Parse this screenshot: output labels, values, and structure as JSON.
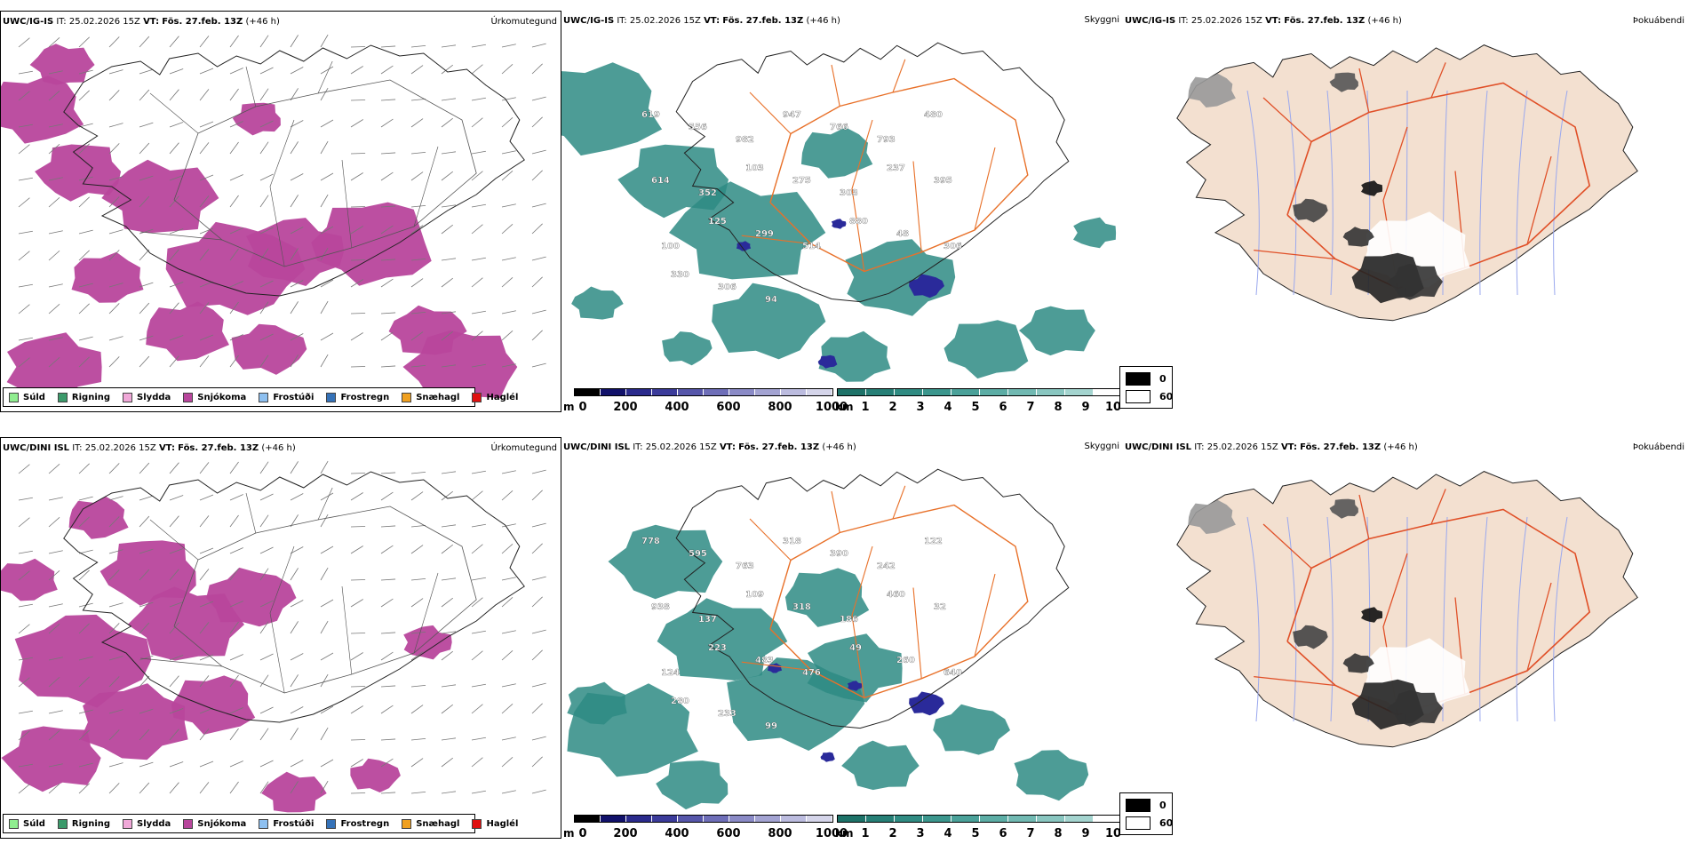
{
  "rows": [
    {
      "header": {
        "model": "UWC/IG-IS",
        "it_label": "IT:",
        "it_value": "25.02.2026 15Z",
        "vt_label": "VT:",
        "vt_value": "Fös. 27.feb. 13Z",
        "lead": "(+46 h)"
      },
      "precip_title": "Úrkomutegund",
      "visibility_title": "Skyggni",
      "cloud_title": "Þokuábendi",
      "ceiling_labels": [
        "619",
        "556",
        "982",
        "947",
        "766",
        "793",
        "480",
        "614",
        "352",
        "103",
        "275",
        "303",
        "237",
        "395",
        "100",
        "125",
        "299",
        "514",
        "880",
        "48",
        "306",
        "330",
        "306",
        "94"
      ]
    },
    {
      "header": {
        "model": "UWC/DINI ISL",
        "it_label": "IT:",
        "it_value": "25.02.2026 15Z",
        "vt_label": "VT:",
        "vt_value": "Fös. 27.feb. 13Z",
        "lead": "(+46 h)"
      },
      "precip_title": "Úrkomutegund",
      "visibility_title": "Skyggni",
      "cloud_title": "Þokuábendi",
      "ceiling_labels": [
        "778",
        "595",
        "763",
        "318",
        "390",
        "242",
        "122",
        "938",
        "137",
        "109",
        "318",
        "186",
        "460",
        "32",
        "124",
        "223",
        "483",
        "476",
        "49",
        "260",
        "640",
        "280",
        "233",
        "99"
      ]
    }
  ],
  "precip_legend": [
    {
      "label": "Súld",
      "color": "#90ee90"
    },
    {
      "label": "Rigning",
      "color": "#3c9a6b"
    },
    {
      "label": "Slydda",
      "color": "#f0a8d8"
    },
    {
      "label": "Snjókoma",
      "color": "#b8469c"
    },
    {
      "label": "Frostúði",
      "color": "#8ec0f0"
    },
    {
      "label": "Frostregn",
      "color": "#3572b8"
    },
    {
      "label": "Snæhagl",
      "color": "#f0a020"
    },
    {
      "label": "Haglél",
      "color": "#e01010"
    }
  ],
  "ceiling_scale": {
    "unit": "m",
    "ticks": [
      "0",
      "200",
      "400",
      "600",
      "800",
      "1000"
    ]
  },
  "visibility_scale": {
    "unit": "km",
    "ticks": [
      "1",
      "2",
      "3",
      "4",
      "5",
      "6",
      "7",
      "8",
      "9",
      "10"
    ]
  },
  "cloud_legend": {
    "dark": "0",
    "light": "60"
  },
  "colors": {
    "snow": "#b8469c",
    "fog_teal": "#2e8b84",
    "ceiling_blue": "#2a2a9a",
    "road": "#e8712a",
    "land": "#f3e0d0",
    "cloud_road": "#e05028"
  }
}
